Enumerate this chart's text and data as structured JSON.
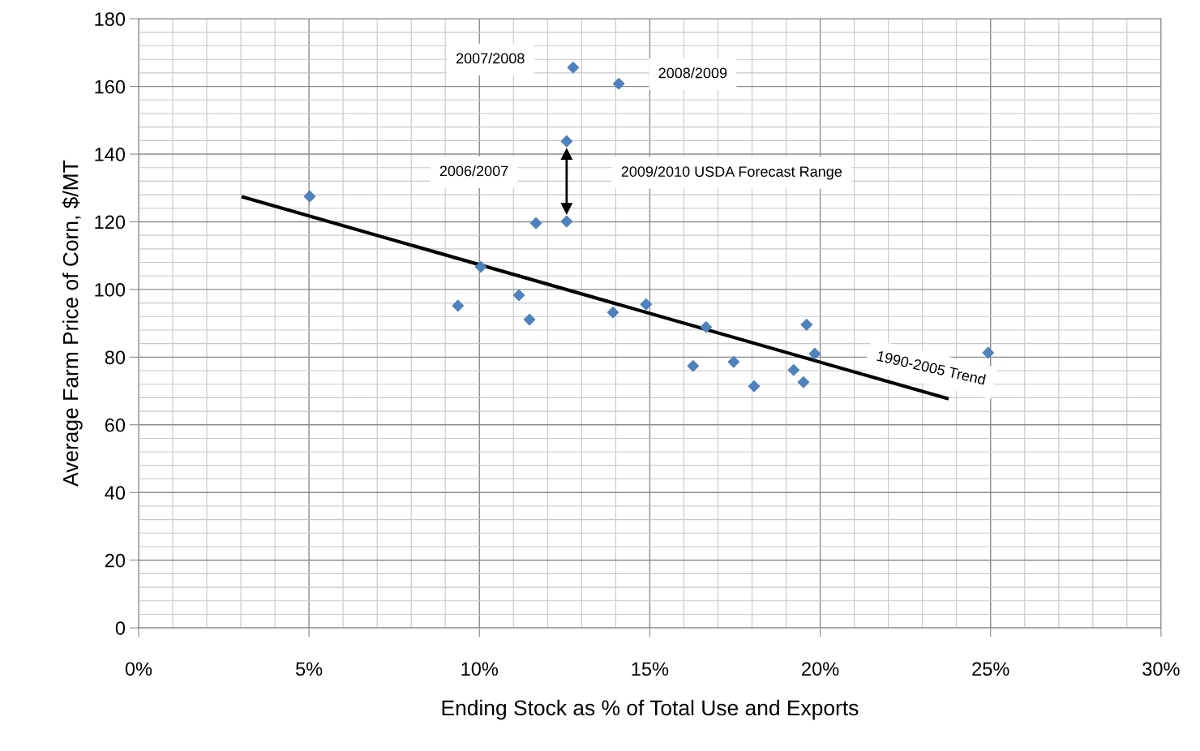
{
  "chart_data": {
    "type": "scatter",
    "xlabel": "Ending Stock as % of Total Use and Exports",
    "ylabel": "Average Farm Price of Corn, $/MT",
    "xlim": [
      0,
      30
    ],
    "xticks": [
      {
        "value": 0,
        "label": "0%"
      },
      {
        "value": 5,
        "label": "5%"
      },
      {
        "value": 10,
        "label": "10%"
      },
      {
        "value": 15,
        "label": "15%"
      },
      {
        "value": 20,
        "label": "20%"
      },
      {
        "value": 25,
        "label": "25%"
      },
      {
        "value": 30,
        "label": "30%"
      }
    ],
    "ylim": [
      0,
      180
    ],
    "yticks": [
      0,
      20,
      40,
      60,
      80,
      100,
      120,
      140,
      160,
      180
    ],
    "grid": true,
    "series": [
      {
        "marker": "diamond",
        "color": "#4f81bd",
        "x": [
          5.02,
          9.37,
          10.04,
          11.16,
          11.47,
          11.66,
          12.56,
          12.56,
          12.75,
          13.92,
          14.09,
          14.89,
          16.27,
          16.65,
          17.46,
          18.06,
          19.22,
          19.51,
          19.6,
          19.84,
          24.93
        ],
        "values": [
          127.5,
          95.2,
          106.7,
          98.3,
          91.1,
          119.6,
          143.8,
          120.1,
          165.6,
          93.2,
          160.8,
          95.6,
          77.4,
          88.9,
          78.6,
          71.4,
          76.2,
          72.6,
          89.6,
          81.0,
          81.3
        ]
      },
      {
        "type": "line",
        "marker": "none",
        "color": "#000000",
        "x": [
          3.07,
          23.72
        ],
        "values": [
          127.3,
          67.8
        ]
      },
      {
        "type": "line",
        "marker": "triangle",
        "color": "#000000",
        "x": [
          12.56,
          12.56
        ],
        "values": [
          123.9,
          140.0
        ]
      }
    ],
    "annotations": [
      "2007/2008",
      "2008/2009",
      "2006/2007",
      "2009/2010 USDA Forecast Range",
      "1990-2005 Trend"
    ]
  }
}
